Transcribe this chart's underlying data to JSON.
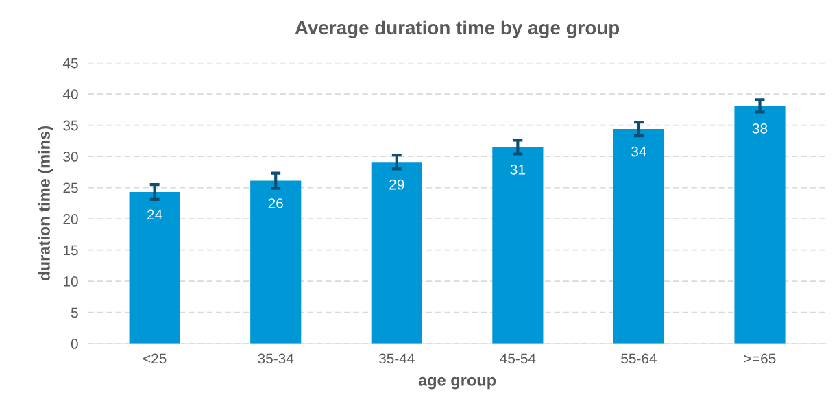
{
  "chart_data": {
    "type": "bar",
    "title": "Average duration time by age group",
    "xlabel": "age group",
    "ylabel": "duration time (mins)",
    "categories": [
      "<25",
      "35-34",
      "35-44",
      "45-54",
      "55-64",
      ">=65"
    ],
    "values": [
      24.3,
      26.1,
      29.1,
      31.5,
      34.4,
      38.1
    ],
    "errors": [
      1.2,
      1.2,
      1.1,
      1.1,
      1.1,
      1.0
    ],
    "value_labels": [
      "24",
      "26",
      "29",
      "31",
      "34",
      "38"
    ],
    "color": "#0097d7",
    "ylim": [
      0,
      45
    ],
    "yticks": [
      0,
      5,
      10,
      15,
      20,
      25,
      30,
      35,
      40,
      45
    ],
    "grid": "y",
    "legend": false
  }
}
